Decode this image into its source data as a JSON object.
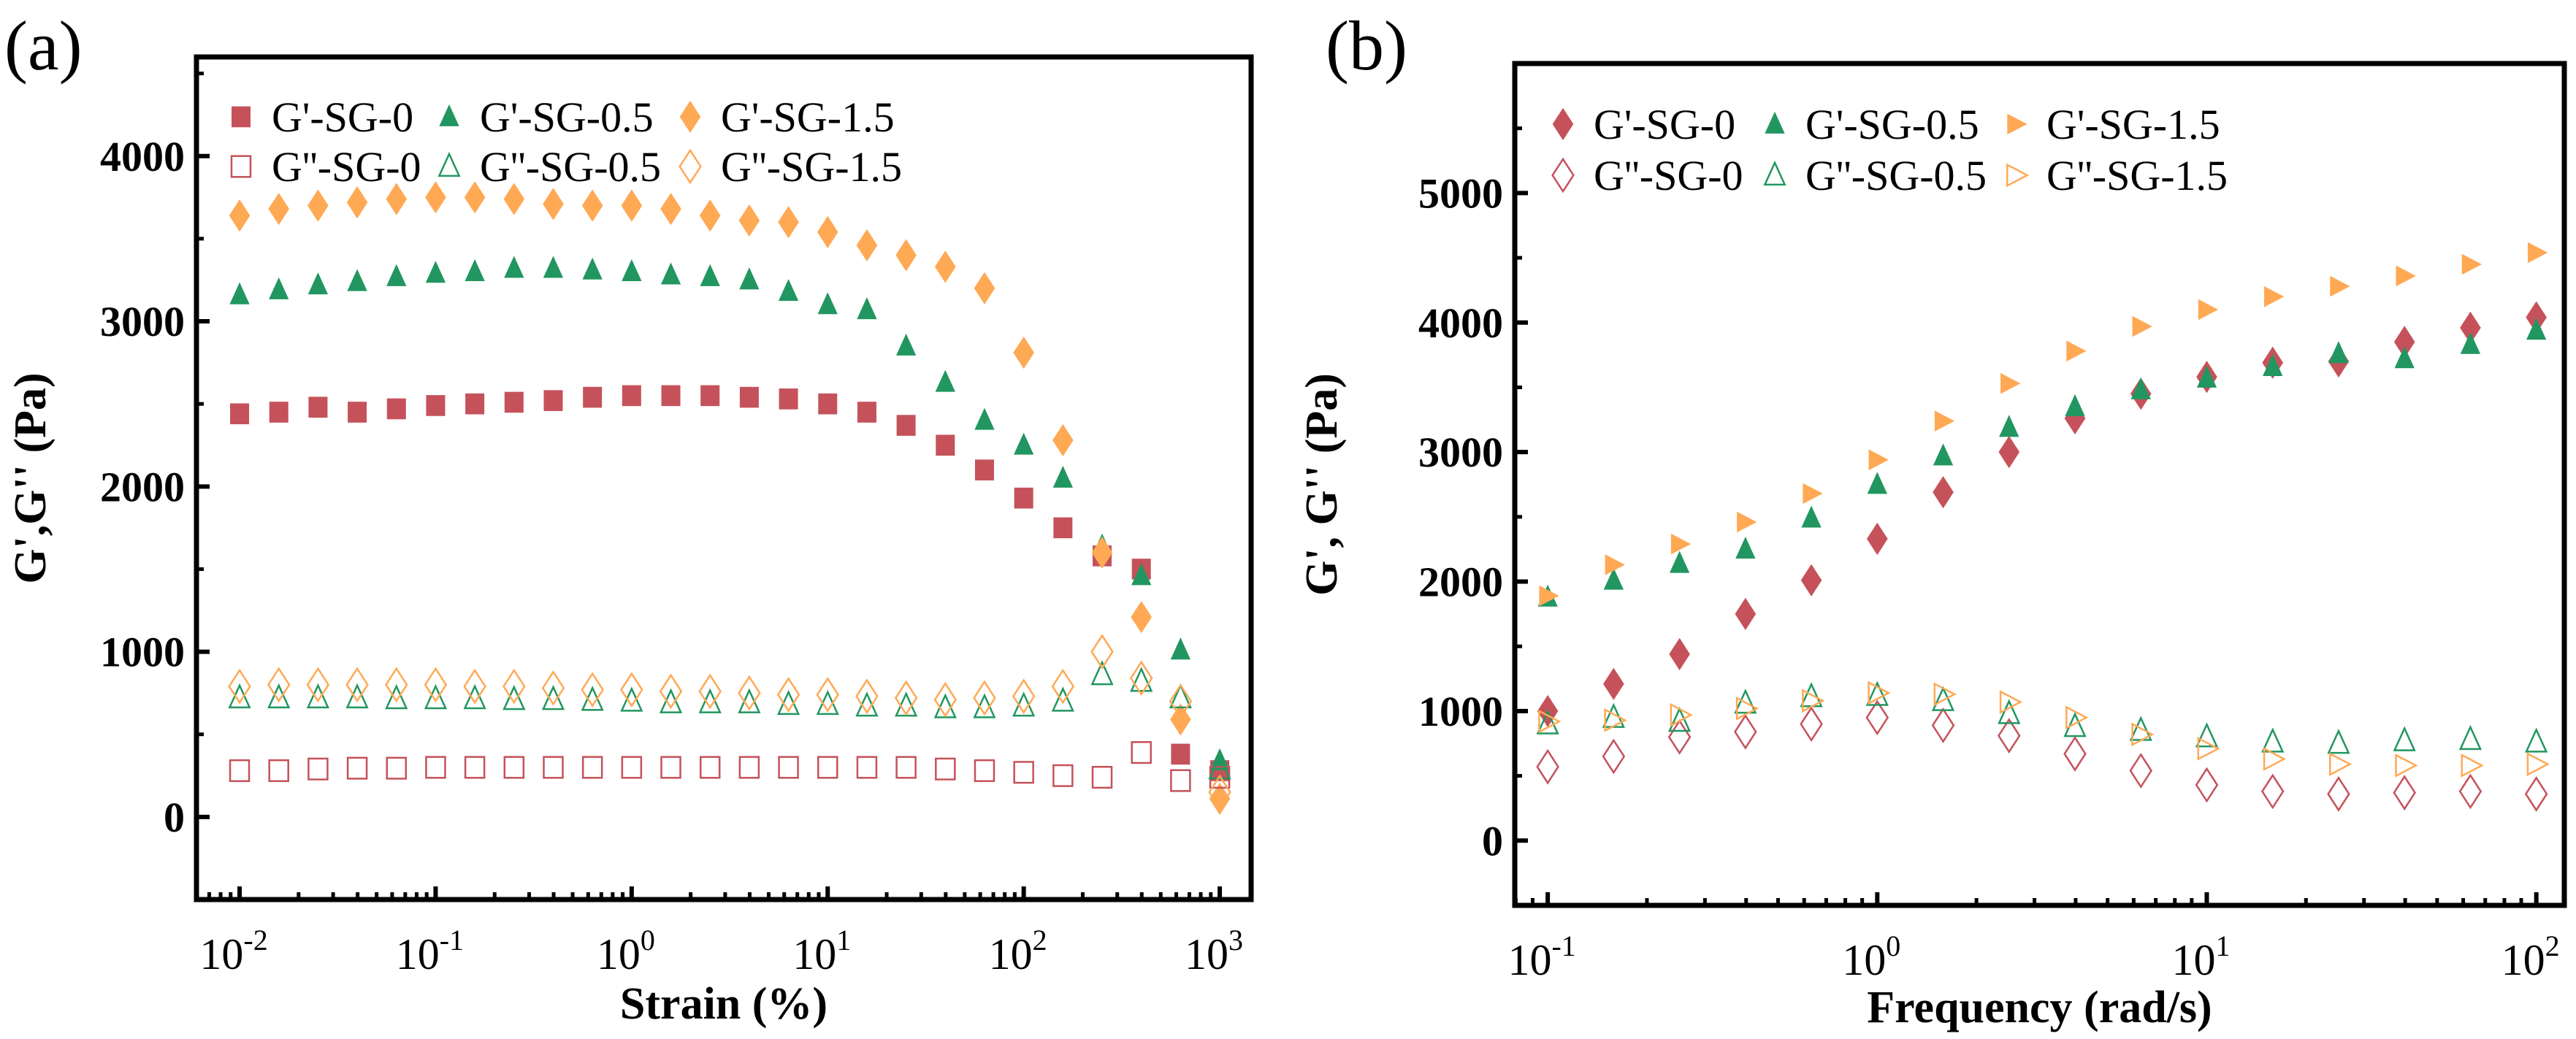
{
  "colors": {
    "SG-0": "#C5525A",
    "SG-0.5": "#229660",
    "SG-1.5": "#FFA955"
  },
  "chart_data": [
    {
      "type": "scatter",
      "panel_label": "(a)",
      "xlabel": "Strain (%)",
      "ylabel": "G',G'' (Pa)",
      "xscale": "log",
      "xlim_log10": [
        -2.22,
        3.16
      ],
      "ylim": [
        -500,
        4600
      ],
      "yticks": [
        0,
        1000,
        2000,
        3000,
        4000
      ],
      "xticks_log10": [
        -2,
        -1,
        0,
        1,
        2,
        3
      ],
      "xtick_base": "10",
      "legend_position": "top-left",
      "x_log10": [
        -2,
        -1.8,
        -1.6,
        -1.4,
        -1.2,
        -1,
        -0.8,
        -0.6,
        -0.4,
        -0.2,
        0,
        0.2,
        0.4,
        0.6,
        0.8,
        1,
        1.2,
        1.4,
        1.6,
        1.8,
        2,
        2.2,
        2.4,
        2.6,
        2.8,
        3
      ],
      "series": [
        {
          "name": "G'-SG-0",
          "group": "SG-0",
          "marker": "square",
          "filled": true,
          "values": [
            2440,
            2450,
            2480,
            2450,
            2470,
            2490,
            2500,
            2510,
            2520,
            2540,
            2550,
            2550,
            2550,
            2540,
            2530,
            2500,
            2450,
            2370,
            2250,
            2100,
            1930,
            1750,
            1580,
            1500,
            380,
            280
          ]
        },
        {
          "name": "G'-SG-0.5",
          "group": "SG-0.5",
          "marker": "triangle-up",
          "filled": true,
          "values": [
            3160,
            3190,
            3220,
            3240,
            3270,
            3290,
            3300,
            3320,
            3320,
            3310,
            3300,
            3280,
            3270,
            3250,
            3180,
            3100,
            3070,
            2850,
            2630,
            2400,
            2250,
            2050,
            1640,
            1460,
            1010,
            340
          ]
        },
        {
          "name": "G'-SG-1.5",
          "group": "SG-1.5",
          "marker": "diamond",
          "filled": true,
          "values": [
            3640,
            3680,
            3700,
            3720,
            3740,
            3750,
            3750,
            3740,
            3710,
            3700,
            3700,
            3680,
            3640,
            3610,
            3600,
            3540,
            3460,
            3400,
            3330,
            3200,
            2810,
            2280,
            1600,
            1210,
            590,
            110
          ]
        },
        {
          "name": "G''-SG-0",
          "group": "SG-0",
          "marker": "square",
          "filled": false,
          "values": [
            280,
            280,
            290,
            295,
            295,
            300,
            300,
            300,
            300,
            300,
            300,
            300,
            300,
            300,
            300,
            300,
            300,
            300,
            290,
            280,
            270,
            250,
            240,
            390,
            220,
            240
          ]
        },
        {
          "name": "G''-SG-0.5",
          "group": "SG-0.5",
          "marker": "triangle-up",
          "filled": false,
          "values": [
            720,
            720,
            720,
            720,
            715,
            715,
            715,
            710,
            710,
            705,
            700,
            690,
            690,
            690,
            680,
            680,
            670,
            670,
            660,
            660,
            670,
            700,
            860,
            820,
            720,
            290
          ]
        },
        {
          "name": "G''-SG-1.5",
          "group": "SG-1.5",
          "marker": "diamond",
          "filled": false,
          "values": [
            790,
            800,
            800,
            800,
            800,
            800,
            790,
            790,
            780,
            770,
            770,
            760,
            760,
            750,
            740,
            740,
            730,
            720,
            710,
            720,
            730,
            790,
            1000,
            840,
            700,
            150
          ]
        }
      ]
    },
    {
      "type": "scatter",
      "panel_label": "(b)",
      "xlabel": "Frequency (rad/s)",
      "ylabel": "G', G'' (Pa)",
      "xscale": "log",
      "xlim_log10": [
        -1.1,
        2.085
      ],
      "ylim": [
        -500,
        6000
      ],
      "yticks": [
        0,
        1000,
        2000,
        3000,
        4000,
        5000
      ],
      "xticks_log10": [
        -1,
        0,
        1,
        2
      ],
      "xtick_base": "10",
      "legend_position": "top-left",
      "x_log10": [
        -1,
        -0.8,
        -0.6,
        -0.4,
        -0.2,
        0,
        0.2,
        0.4,
        0.6,
        0.8,
        1,
        1.2,
        1.4,
        1.6,
        1.8,
        2
      ],
      "series": [
        {
          "name": "G'-SG-0",
          "group": "SG-0",
          "marker": "diamond",
          "filled": true,
          "values": [
            1000,
            1210,
            1440,
            1750,
            2010,
            2330,
            2690,
            3000,
            3260,
            3450,
            3580,
            3690,
            3700,
            3850,
            3960,
            4040
          ]
        },
        {
          "name": "G'-SG-0.5",
          "group": "SG-0.5",
          "marker": "triangle-up",
          "filled": true,
          "values": [
            1880,
            2010,
            2140,
            2250,
            2490,
            2750,
            2970,
            3190,
            3350,
            3480,
            3570,
            3660,
            3760,
            3720,
            3830,
            3940
          ]
        },
        {
          "name": "G'-SG-1.5",
          "group": "SG-1.5",
          "marker": "triangle-right",
          "filled": true,
          "values": [
            1890,
            2130,
            2290,
            2460,
            2680,
            2940,
            3240,
            3530,
            3780,
            3970,
            4100,
            4200,
            4280,
            4360,
            4450,
            4540
          ]
        },
        {
          "name": "G''-SG-0",
          "group": "SG-0",
          "marker": "diamond",
          "filled": false,
          "values": [
            570,
            650,
            800,
            840,
            900,
            950,
            890,
            810,
            670,
            540,
            430,
            380,
            360,
            370,
            380,
            360
          ]
        },
        {
          "name": "G''-SG-0.5",
          "group": "SG-0.5",
          "marker": "triangle-up",
          "filled": false,
          "values": [
            900,
            950,
            920,
            1060,
            1110,
            1120,
            1080,
            980,
            880,
            850,
            800,
            760,
            750,
            770,
            780,
            760
          ]
        },
        {
          "name": "G''-SG-1.5",
          "group": "SG-1.5",
          "marker": "triangle-right",
          "filled": false,
          "values": [
            920,
            930,
            970,
            1020,
            1080,
            1140,
            1130,
            1070,
            950,
            820,
            710,
            630,
            590,
            580,
            580,
            590
          ]
        }
      ]
    }
  ]
}
